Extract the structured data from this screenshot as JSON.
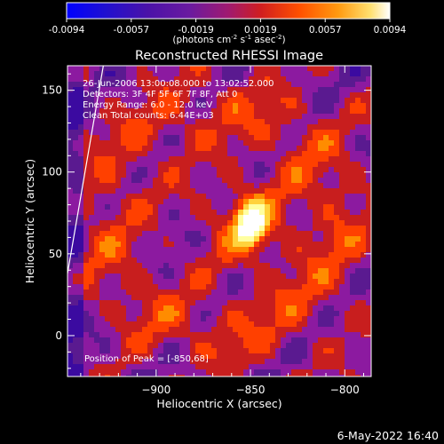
{
  "colorbar": {
    "ticks": [
      "-0.0094",
      "-0.0057",
      "-0.0019",
      "0.0019",
      "0.0057",
      "0.0094"
    ],
    "label_main": "(photons cm",
    "label_sup1": "-2",
    "label_mid1": " s",
    "label_sup2": "-1",
    "label_mid2": " asec",
    "label_sup3": "-2",
    "label_end": ")",
    "colors": [
      "#0000ff",
      "#3b0aa0",
      "#5a1a90",
      "#8c1aa0",
      "#c81e1e",
      "#ff4000",
      "#ff8c00",
      "#ffd23c",
      "#ffffa0",
      "#ffffff"
    ]
  },
  "chart_data": {
    "type": "heatmap",
    "title": "Reconstructed RHESSI Image",
    "xlabel": "Heliocentric X (arcsec)",
    "ylabel": "Heliocentric Y (arcsec)",
    "xlim": [
      -947,
      -786
    ],
    "ylim": [
      -25,
      165
    ],
    "x_ticks": [
      -900,
      -850,
      -800
    ],
    "y_ticks": [
      0,
      50,
      100,
      150
    ],
    "annotations": {
      "time": "26-Jun-2006 13:00:08.000 to 13:02:52.000",
      "detectors": "Detectors: 3F 4F 5F 6F 7F 8F, Att 0",
      "energy": "Energy Range: 6.0 - 12.0 keV",
      "clean": "Clean    Total counts: 6.44E+03",
      "peak": "Position of Peak = [-850,68]"
    },
    "peak": [
      -850,
      68
    ],
    "limb_line": {
      "x": [
        -947,
        -928
      ],
      "y": [
        38,
        165
      ]
    }
  },
  "footer": {
    "date": "6-May-2022 16:40"
  }
}
